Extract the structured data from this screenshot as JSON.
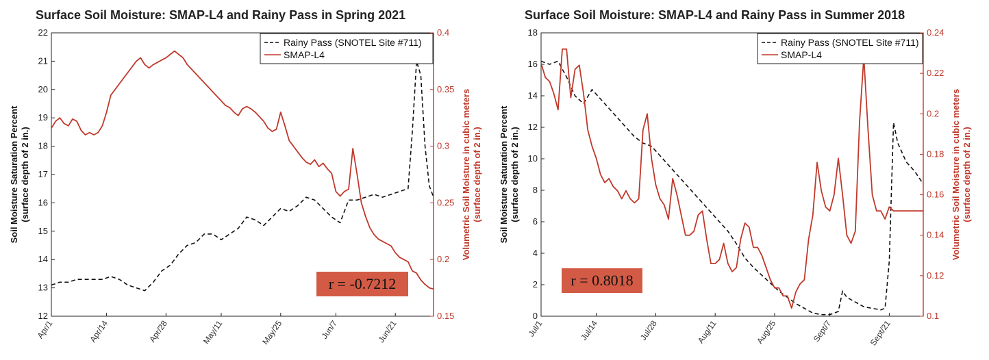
{
  "chart_data": [
    {
      "type": "line",
      "title": "Surface Soil Moisture: SMAP-L4 and Rainy Pass in Spring 2021",
      "ylabel": [
        "Soil Moisture Saturation Percent",
        "(surface depth of 2 in.)"
      ],
      "y2label": [
        "Volumetric Soil Moisture in cubic meters",
        "(surface depth of 2 in.)"
      ],
      "xlabel": "",
      "ylim": [
        12,
        22
      ],
      "y2lim": [
        0.15,
        0.4
      ],
      "yticks": [
        "12",
        "13",
        "14",
        "15",
        "16",
        "17",
        "18",
        "19",
        "20",
        "21",
        "22"
      ],
      "y2ticks": [
        "0.15",
        "0.2",
        "0.25",
        "0.3",
        "0.35",
        "0.4"
      ],
      "xlim": [
        0,
        90
      ],
      "xticks": [
        {
          "day": 0,
          "label": "Apr/1"
        },
        {
          "day": 13,
          "label": "Apr/14"
        },
        {
          "day": 27,
          "label": "Apr/28"
        },
        {
          "day": 40,
          "label": "May/11"
        },
        {
          "day": 54,
          "label": "May/25"
        },
        {
          "day": 67,
          "label": "Jun/7"
        },
        {
          "day": 81,
          "label": "Jun/21"
        }
      ],
      "legend": [
        "Rainy Pass (SNOTEL Site #711)",
        "SMAP-L4"
      ],
      "legend_location": "top-right",
      "annotation": "r = -0.7212",
      "series": [
        {
          "name": "Rainy Pass (SNOTEL Site #711)",
          "axis": "left",
          "style": "dashed",
          "color": "#111111",
          "x": [
            0,
            2,
            4,
            6,
            8,
            10,
            12,
            14,
            16,
            18,
            20,
            22,
            24,
            26,
            28,
            30,
            32,
            34,
            36,
            38,
            40,
            42,
            44,
            46,
            48,
            50,
            52,
            54,
            56,
            58,
            60,
            62,
            64,
            66,
            68,
            70,
            72,
            74,
            76,
            78,
            80,
            82,
            84,
            85,
            86,
            87,
            88,
            89,
            90
          ],
          "y": [
            13.1,
            13.2,
            13.2,
            13.3,
            13.3,
            13.3,
            13.3,
            13.4,
            13.3,
            13.1,
            13.0,
            12.9,
            13.2,
            13.6,
            13.8,
            14.2,
            14.5,
            14.6,
            14.9,
            14.9,
            14.7,
            14.9,
            15.1,
            15.5,
            15.4,
            15.2,
            15.5,
            15.8,
            15.7,
            15.9,
            16.2,
            16.1,
            15.8,
            15.5,
            15.3,
            16.1,
            16.1,
            16.2,
            16.3,
            16.2,
            16.3,
            16.4,
            16.5,
            18.5,
            21.0,
            20.5,
            18.0,
            16.6,
            16.2
          ]
        },
        {
          "name": "SMAP-L4",
          "axis": "right",
          "style": "solid",
          "color": "#c0392b",
          "x": [
            0,
            1,
            2,
            3,
            4,
            5,
            6,
            7,
            8,
            9,
            10,
            11,
            12,
            13,
            14,
            15,
            16,
            17,
            18,
            19,
            20,
            21,
            22,
            23,
            24,
            25,
            26,
            27,
            28,
            29,
            30,
            31,
            32,
            33,
            34,
            35,
            36,
            37,
            38,
            39,
            40,
            41,
            42,
            43,
            44,
            45,
            46,
            47,
            48,
            49,
            50,
            51,
            52,
            53,
            54,
            55,
            56,
            57,
            58,
            59,
            60,
            61,
            62,
            63,
            64,
            65,
            66,
            67,
            68,
            69,
            70,
            71,
            72,
            73,
            74,
            75,
            76,
            77,
            78,
            79,
            80,
            81,
            82,
            83,
            84,
            85,
            86,
            87,
            88,
            89,
            90
          ],
          "y": [
            0.316,
            0.322,
            0.325,
            0.32,
            0.318,
            0.324,
            0.322,
            0.314,
            0.31,
            0.312,
            0.31,
            0.312,
            0.318,
            0.33,
            0.345,
            0.35,
            0.355,
            0.36,
            0.365,
            0.37,
            0.375,
            0.378,
            0.372,
            0.369,
            0.372,
            0.374,
            0.376,
            0.378,
            0.381,
            0.384,
            0.381,
            0.378,
            0.372,
            0.368,
            0.364,
            0.36,
            0.356,
            0.352,
            0.348,
            0.344,
            0.34,
            0.336,
            0.334,
            0.33,
            0.327,
            0.333,
            0.335,
            0.333,
            0.33,
            0.326,
            0.322,
            0.316,
            0.313,
            0.315,
            0.33,
            0.318,
            0.305,
            0.3,
            0.295,
            0.29,
            0.286,
            0.284,
            0.288,
            0.282,
            0.285,
            0.28,
            0.276,
            0.26,
            0.256,
            0.26,
            0.262,
            0.298,
            0.275,
            0.25,
            0.238,
            0.228,
            0.222,
            0.218,
            0.216,
            0.214,
            0.212,
            0.206,
            0.202,
            0.2,
            0.198,
            0.19,
            0.188,
            0.182,
            0.178,
            0.175,
            0.174
          ]
        }
      ]
    },
    {
      "type": "line",
      "title": "Surface Soil Moisture: SMAP-L4 and Rainy Pass in Summer 2018",
      "ylabel": [
        "Soil Moisture Saturation Percent",
        "(surface depth of 2 in.)"
      ],
      "y2label": [
        "Volumetric Soil Moisture in cubic meters",
        "(surface depth of 2 in.)"
      ],
      "xlabel": "",
      "ylim": [
        0,
        18
      ],
      "y2lim": [
        0.1,
        0.24
      ],
      "yticks": [
        "0",
        "2",
        "4",
        "6",
        "8",
        "10",
        "12",
        "14",
        "16",
        "18"
      ],
      "y2ticks": [
        "0.1",
        "0.12",
        "0.14",
        "0.16",
        "0.18",
        "0.2",
        "0.22",
        "0.24"
      ],
      "xlim": [
        0,
        90
      ],
      "xticks": [
        {
          "day": 0,
          "label": "Jul/1"
        },
        {
          "day": 13,
          "label": "Jul/14"
        },
        {
          "day": 27,
          "label": "Jul/28"
        },
        {
          "day": 41,
          "label": "Aug/11"
        },
        {
          "day": 55,
          "label": "Aug/25"
        },
        {
          "day": 68,
          "label": "Sept/7"
        },
        {
          "day": 82,
          "label": "Sept/21"
        }
      ],
      "legend": [
        "Rainy Pass (SNOTEL Site #711)",
        "SMAP-L4"
      ],
      "legend_location": "top-right",
      "annotation": "r = 0.8018",
      "series": [
        {
          "name": "Rainy Pass (SNOTEL Site #711)",
          "axis": "left",
          "style": "dashed",
          "color": "#111111",
          "x": [
            0,
            2,
            4,
            6,
            8,
            10,
            12,
            14,
            16,
            18,
            20,
            22,
            24,
            26,
            28,
            30,
            32,
            34,
            36,
            38,
            40,
            42,
            44,
            46,
            48,
            50,
            52,
            54,
            56,
            58,
            60,
            62,
            64,
            66,
            68,
            70,
            71,
            72,
            74,
            76,
            78,
            80,
            81,
            82,
            83,
            84,
            86,
            88,
            90
          ],
          "y": [
            16.2,
            16.0,
            16.2,
            15.2,
            14.0,
            13.5,
            14.4,
            13.8,
            13.2,
            12.6,
            12.0,
            11.4,
            11.0,
            10.8,
            10.2,
            9.6,
            9.0,
            8.4,
            7.8,
            7.2,
            6.6,
            6.0,
            5.4,
            4.6,
            3.7,
            3.1,
            2.6,
            2.1,
            1.6,
            1.2,
            0.8,
            0.5,
            0.2,
            0.1,
            0.1,
            0.3,
            1.6,
            1.2,
            0.9,
            0.6,
            0.5,
            0.4,
            0.5,
            3.5,
            12.3,
            11.0,
            9.8,
            9.2,
            8.4
          ]
        },
        {
          "name": "SMAP-L4",
          "axis": "right",
          "style": "solid",
          "color": "#c0392b",
          "x": [
            0,
            1,
            2,
            3,
            4,
            5,
            6,
            7,
            8,
            9,
            10,
            11,
            12,
            13,
            14,
            15,
            16,
            17,
            18,
            19,
            20,
            21,
            22,
            23,
            24,
            25,
            26,
            27,
            28,
            29,
            30,
            31,
            32,
            33,
            34,
            35,
            36,
            37,
            38,
            39,
            40,
            41,
            42,
            43,
            44,
            45,
            46,
            47,
            48,
            49,
            50,
            51,
            52,
            53,
            54,
            55,
            56,
            57,
            58,
            59,
            60,
            61,
            62,
            63,
            64,
            65,
            66,
            67,
            68,
            69,
            70,
            71,
            72,
            73,
            74,
            75,
            76,
            77,
            78,
            79,
            80,
            81,
            82,
            83,
            84,
            85,
            86,
            87,
            88,
            89,
            90
          ],
          "y": [
            0.225,
            0.218,
            0.216,
            0.21,
            0.202,
            0.232,
            0.232,
            0.208,
            0.222,
            0.224,
            0.21,
            0.192,
            0.184,
            0.178,
            0.17,
            0.166,
            0.168,
            0.164,
            0.162,
            0.158,
            0.162,
            0.158,
            0.156,
            0.158,
            0.192,
            0.2,
            0.178,
            0.165,
            0.158,
            0.155,
            0.148,
            0.168,
            0.16,
            0.15,
            0.14,
            0.14,
            0.142,
            0.15,
            0.152,
            0.138,
            0.126,
            0.126,
            0.128,
            0.136,
            0.126,
            0.122,
            0.124,
            0.138,
            0.146,
            0.144,
            0.134,
            0.134,
            0.13,
            0.124,
            0.118,
            0.114,
            0.114,
            0.11,
            0.11,
            0.104,
            0.112,
            0.116,
            0.118,
            0.138,
            0.15,
            0.176,
            0.162,
            0.154,
            0.152,
            0.16,
            0.178,
            0.16,
            0.14,
            0.136,
            0.142,
            0.196,
            0.228,
            0.192,
            0.16,
            0.152,
            0.152,
            0.148,
            0.154,
            0.152,
            0.152,
            0.152,
            0.152,
            0.152,
            0.152,
            0.152,
            0.152
          ]
        }
      ]
    }
  ]
}
